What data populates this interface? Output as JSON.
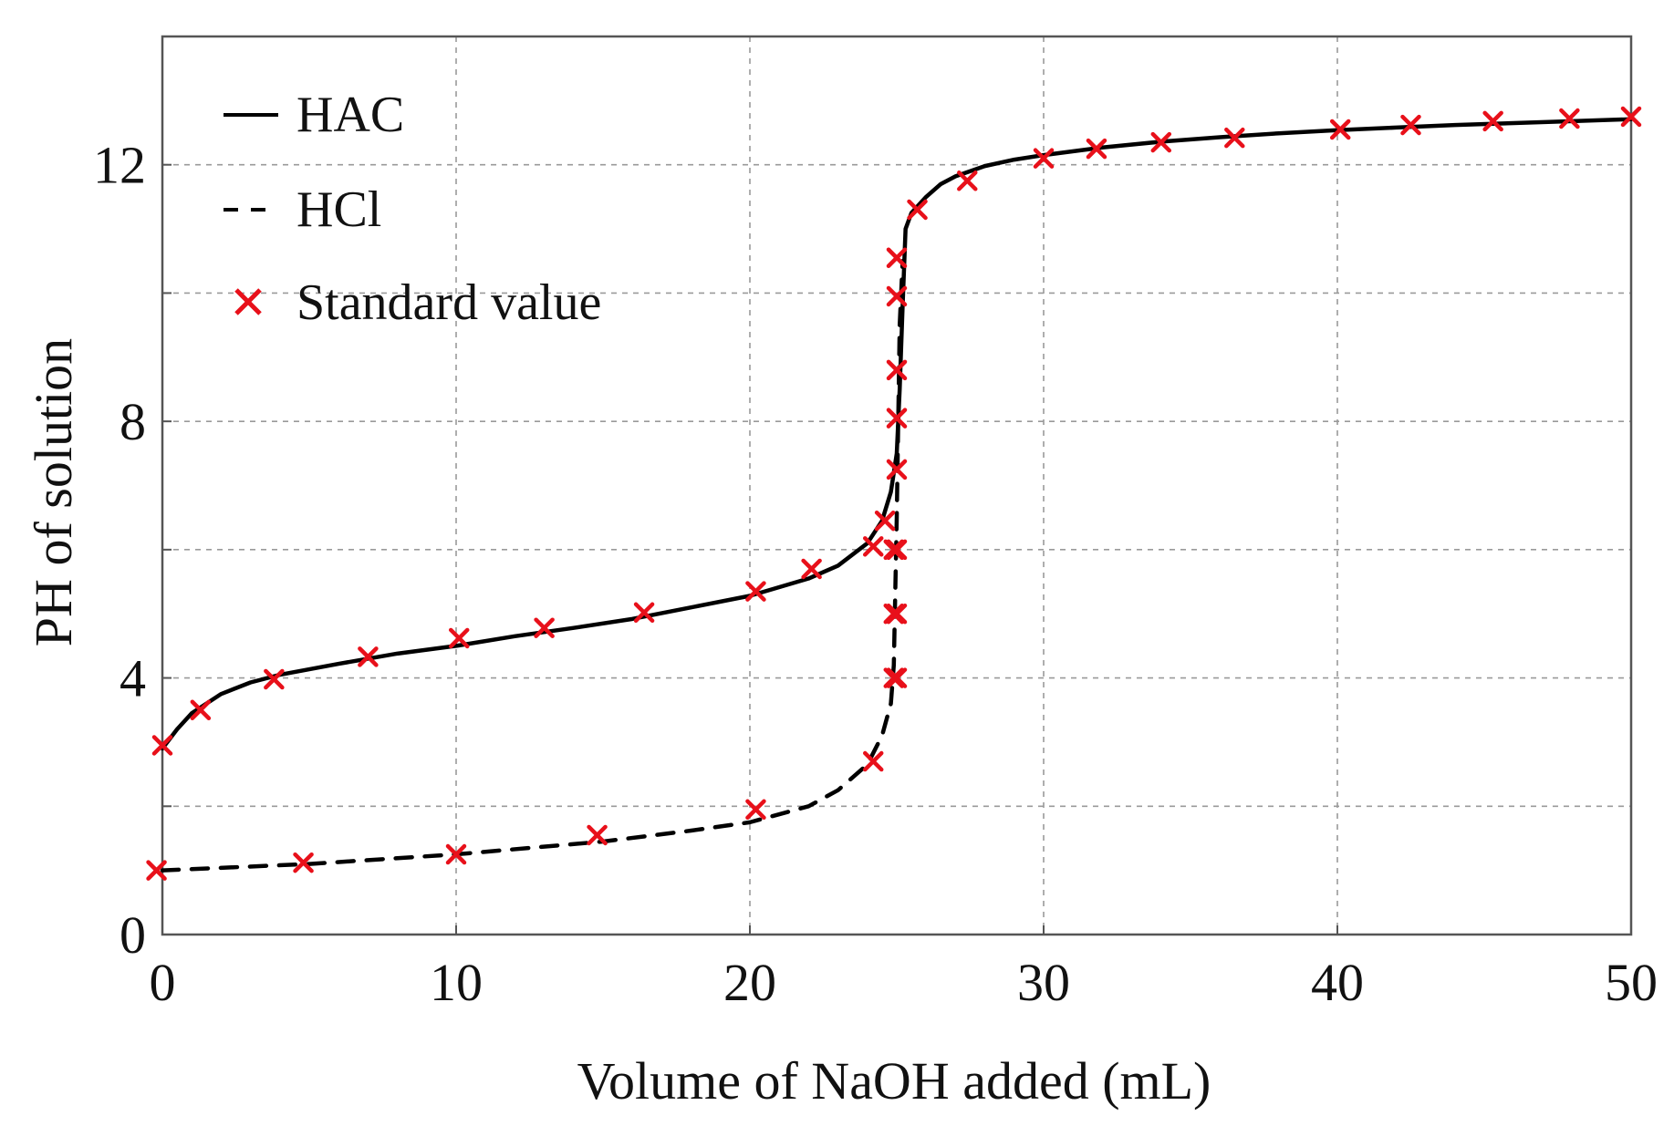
{
  "chart_data": {
    "type": "line",
    "title": "",
    "xlabel": "Volume of NaOH added (mL)",
    "ylabel": "PH of solution",
    "xlim": [
      0,
      50
    ],
    "ylim": [
      0,
      14
    ],
    "xticks": [
      "0",
      "10",
      "20",
      "30",
      "40",
      "50"
    ],
    "yticks": [
      "0",
      "4",
      "8",
      "12"
    ],
    "grid": true,
    "legend_position": "top-left",
    "colors": {
      "line": "#000000",
      "marker": "#e8101a",
      "grid": "#9a9a9a",
      "axis": "#555555"
    },
    "series": [
      {
        "name": "HAC",
        "kind": "line",
        "style": "solid",
        "x": [
          0,
          0.5,
          1,
          2,
          3,
          4,
          6,
          8,
          10,
          12,
          14,
          16,
          18,
          20,
          22,
          23,
          24,
          24.5,
          24.8,
          25,
          25.1,
          25.2,
          25.3,
          25.5,
          26,
          26.5,
          27,
          28,
          29,
          30,
          32,
          34,
          36,
          38,
          40,
          42,
          44,
          46,
          48,
          50
        ],
        "y": [
          2.9,
          3.2,
          3.45,
          3.75,
          3.93,
          4.05,
          4.22,
          4.38,
          4.5,
          4.65,
          4.78,
          4.92,
          5.1,
          5.28,
          5.55,
          5.75,
          6.1,
          6.45,
          6.9,
          7.5,
          8.5,
          9.8,
          11.0,
          11.25,
          11.5,
          11.7,
          11.82,
          11.98,
          12.08,
          12.15,
          12.27,
          12.36,
          12.43,
          12.49,
          12.54,
          12.58,
          12.62,
          12.65,
          12.68,
          12.71
        ]
      },
      {
        "name": "HCl",
        "kind": "line",
        "style": "dashed",
        "x": [
          0,
          5,
          10,
          15,
          18,
          20,
          22,
          23,
          24,
          24.5,
          24.8,
          24.9,
          25,
          25.1,
          25.2
        ],
        "y": [
          1.0,
          1.1,
          1.25,
          1.45,
          1.62,
          1.75,
          2.0,
          2.25,
          2.65,
          3.1,
          3.6,
          4.2,
          6.5,
          9.5,
          10.5
        ]
      },
      {
        "name": "Standard value",
        "kind": "scatter",
        "marker": "x",
        "x": [
          0,
          1.3,
          3.8,
          7,
          10.1,
          13,
          16.4,
          20.2,
          22.1,
          24.2,
          24.6,
          25,
          25,
          25,
          25,
          25,
          25,
          25,
          25,
          25.7,
          27.4,
          30,
          31.8,
          34,
          36.5,
          40.1,
          42.5,
          45.3,
          47.9,
          50,
          -0.2,
          4.8,
          10,
          14.8,
          20.2,
          24.2,
          24.9,
          24.9,
          24.9
        ],
        "y": [
          2.95,
          3.5,
          3.98,
          4.33,
          4.62,
          4.78,
          5.02,
          5.35,
          5.7,
          6.05,
          6.45,
          7.25,
          8.05,
          8.8,
          9.95,
          10.55,
          6.0,
          5.0,
          4.0,
          11.3,
          11.75,
          12.1,
          12.25,
          12.35,
          12.42,
          12.55,
          12.62,
          12.68,
          12.72,
          12.75,
          1.0,
          1.12,
          1.25,
          1.55,
          1.95,
          2.7,
          4.0,
          5.0,
          6.0
        ]
      }
    ]
  }
}
